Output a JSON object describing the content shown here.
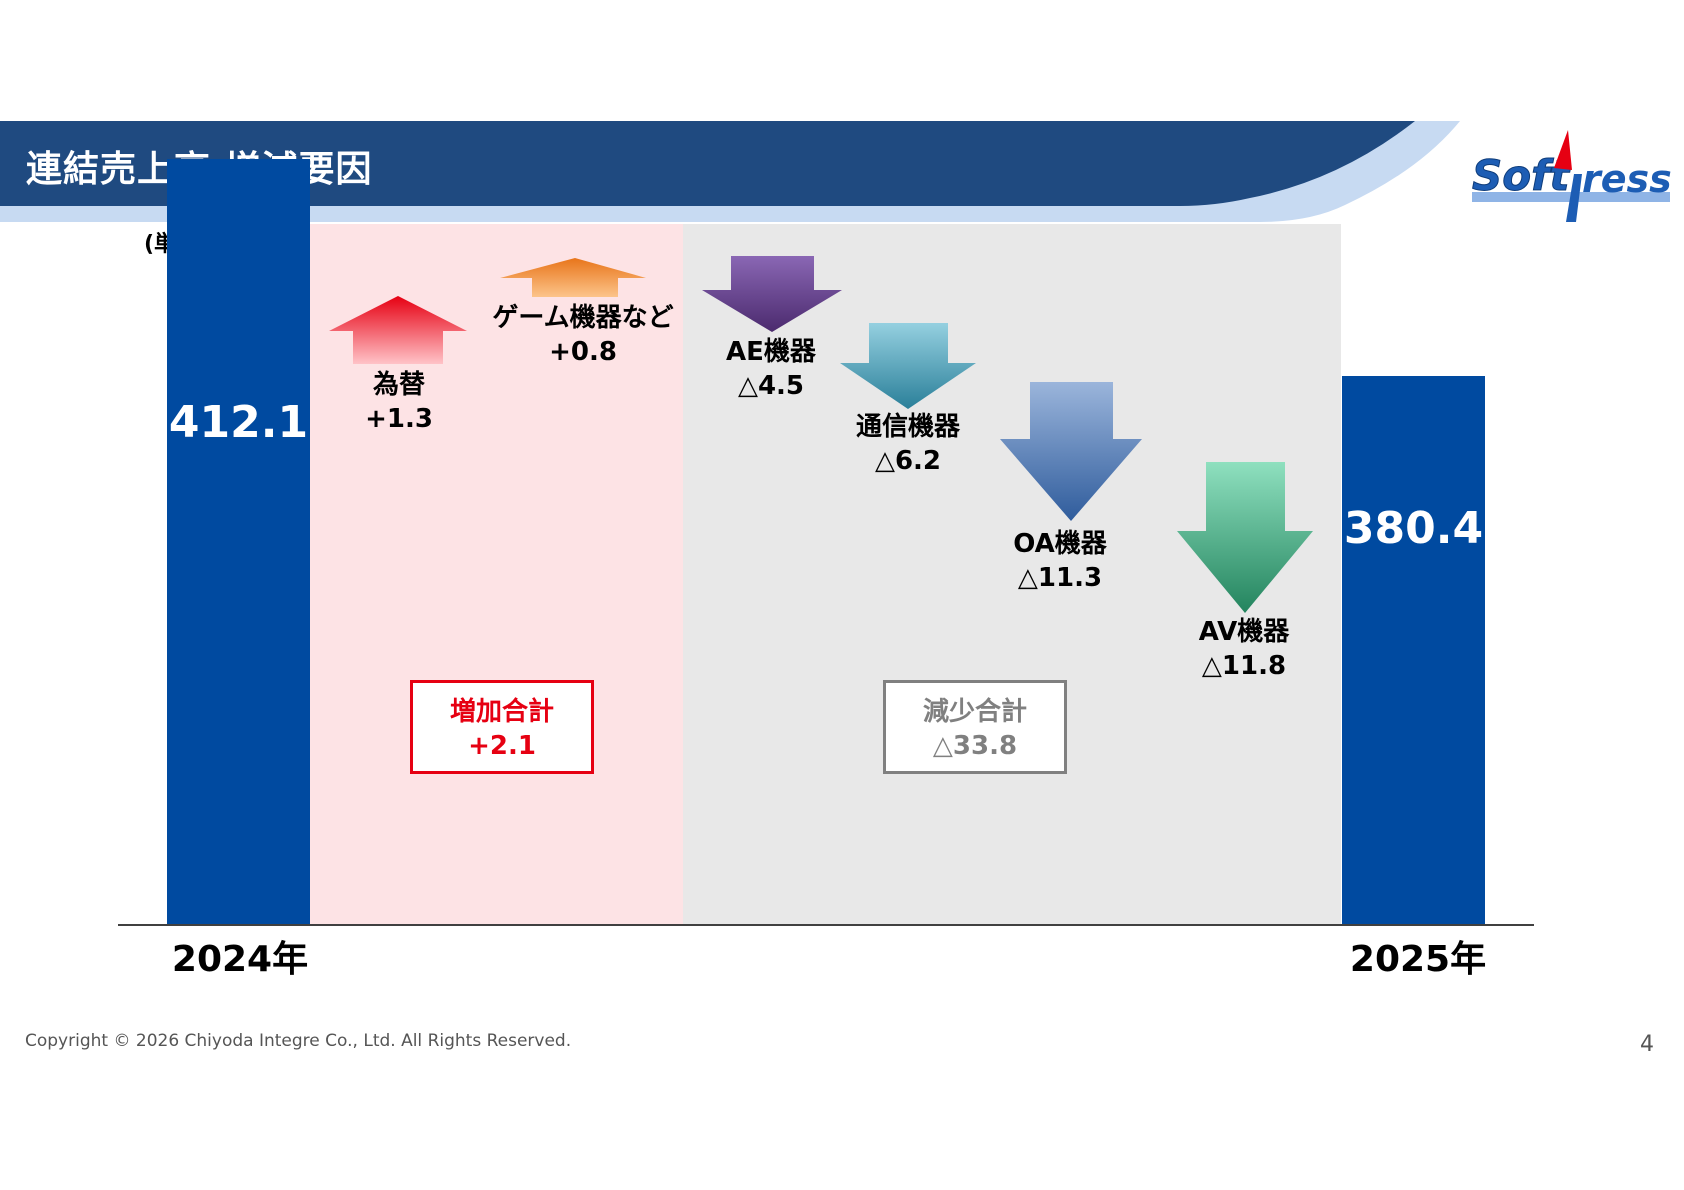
{
  "header": {
    "title": "連結売上高 増減要因",
    "colors": {
      "band": "#1f4a80",
      "swoosh": "#c7daf2"
    }
  },
  "logo": {
    "text": "Soft press",
    "colors": {
      "primary": "#1d5db4",
      "accent": "#e60012"
    }
  },
  "unit_label": "(単位：億円)",
  "chart_data": {
    "type": "bar",
    "subtype": "waterfall",
    "unit": "億円",
    "categories": [
      "2024年",
      "為替",
      "ゲーム機器など",
      "AE機器",
      "通信機器",
      "OA機器",
      "AV機器",
      "2025年"
    ],
    "start": {
      "label": "2024年",
      "value": 412.1,
      "display": "412.1"
    },
    "end": {
      "label": "2025年",
      "value": 380.4,
      "display": "380.4"
    },
    "factors": [
      {
        "name": "為替",
        "delta": 1.3,
        "display": "+1.3",
        "direction": "up",
        "color": "#e60012"
      },
      {
        "name": "ゲーム機器など",
        "delta": 0.8,
        "display": "+0.8",
        "direction": "up",
        "color": "#f08a2c"
      },
      {
        "name": "AE機器",
        "delta": -4.5,
        "display": "△4.5",
        "direction": "down",
        "color": "#6a3f92"
      },
      {
        "name": "通信機器",
        "delta": -6.2,
        "display": "△6.2",
        "direction": "down",
        "color": "#3aa0be"
      },
      {
        "name": "OA機器",
        "delta": -11.3,
        "display": "△11.3",
        "direction": "down",
        "color": "#4f7bbf"
      },
      {
        "name": "AV機器",
        "delta": -11.8,
        "display": "△11.8",
        "direction": "down",
        "color": "#2fae79"
      }
    ],
    "summaries": {
      "increase": {
        "label": "増加合計",
        "value": "+2.1",
        "color": "#e60012"
      },
      "decrease": {
        "label": "減少合計",
        "value": "△33.8",
        "color": "#808080"
      }
    },
    "colors": {
      "bar": "#004aa0",
      "increase_zone": "#fde3e5",
      "decrease_zone": "#e8e8e8"
    }
  },
  "footer": {
    "copyright": "Copyright © 2026 Chiyoda Integre Co., Ltd. All Rights Reserved.",
    "page_number": "4"
  }
}
